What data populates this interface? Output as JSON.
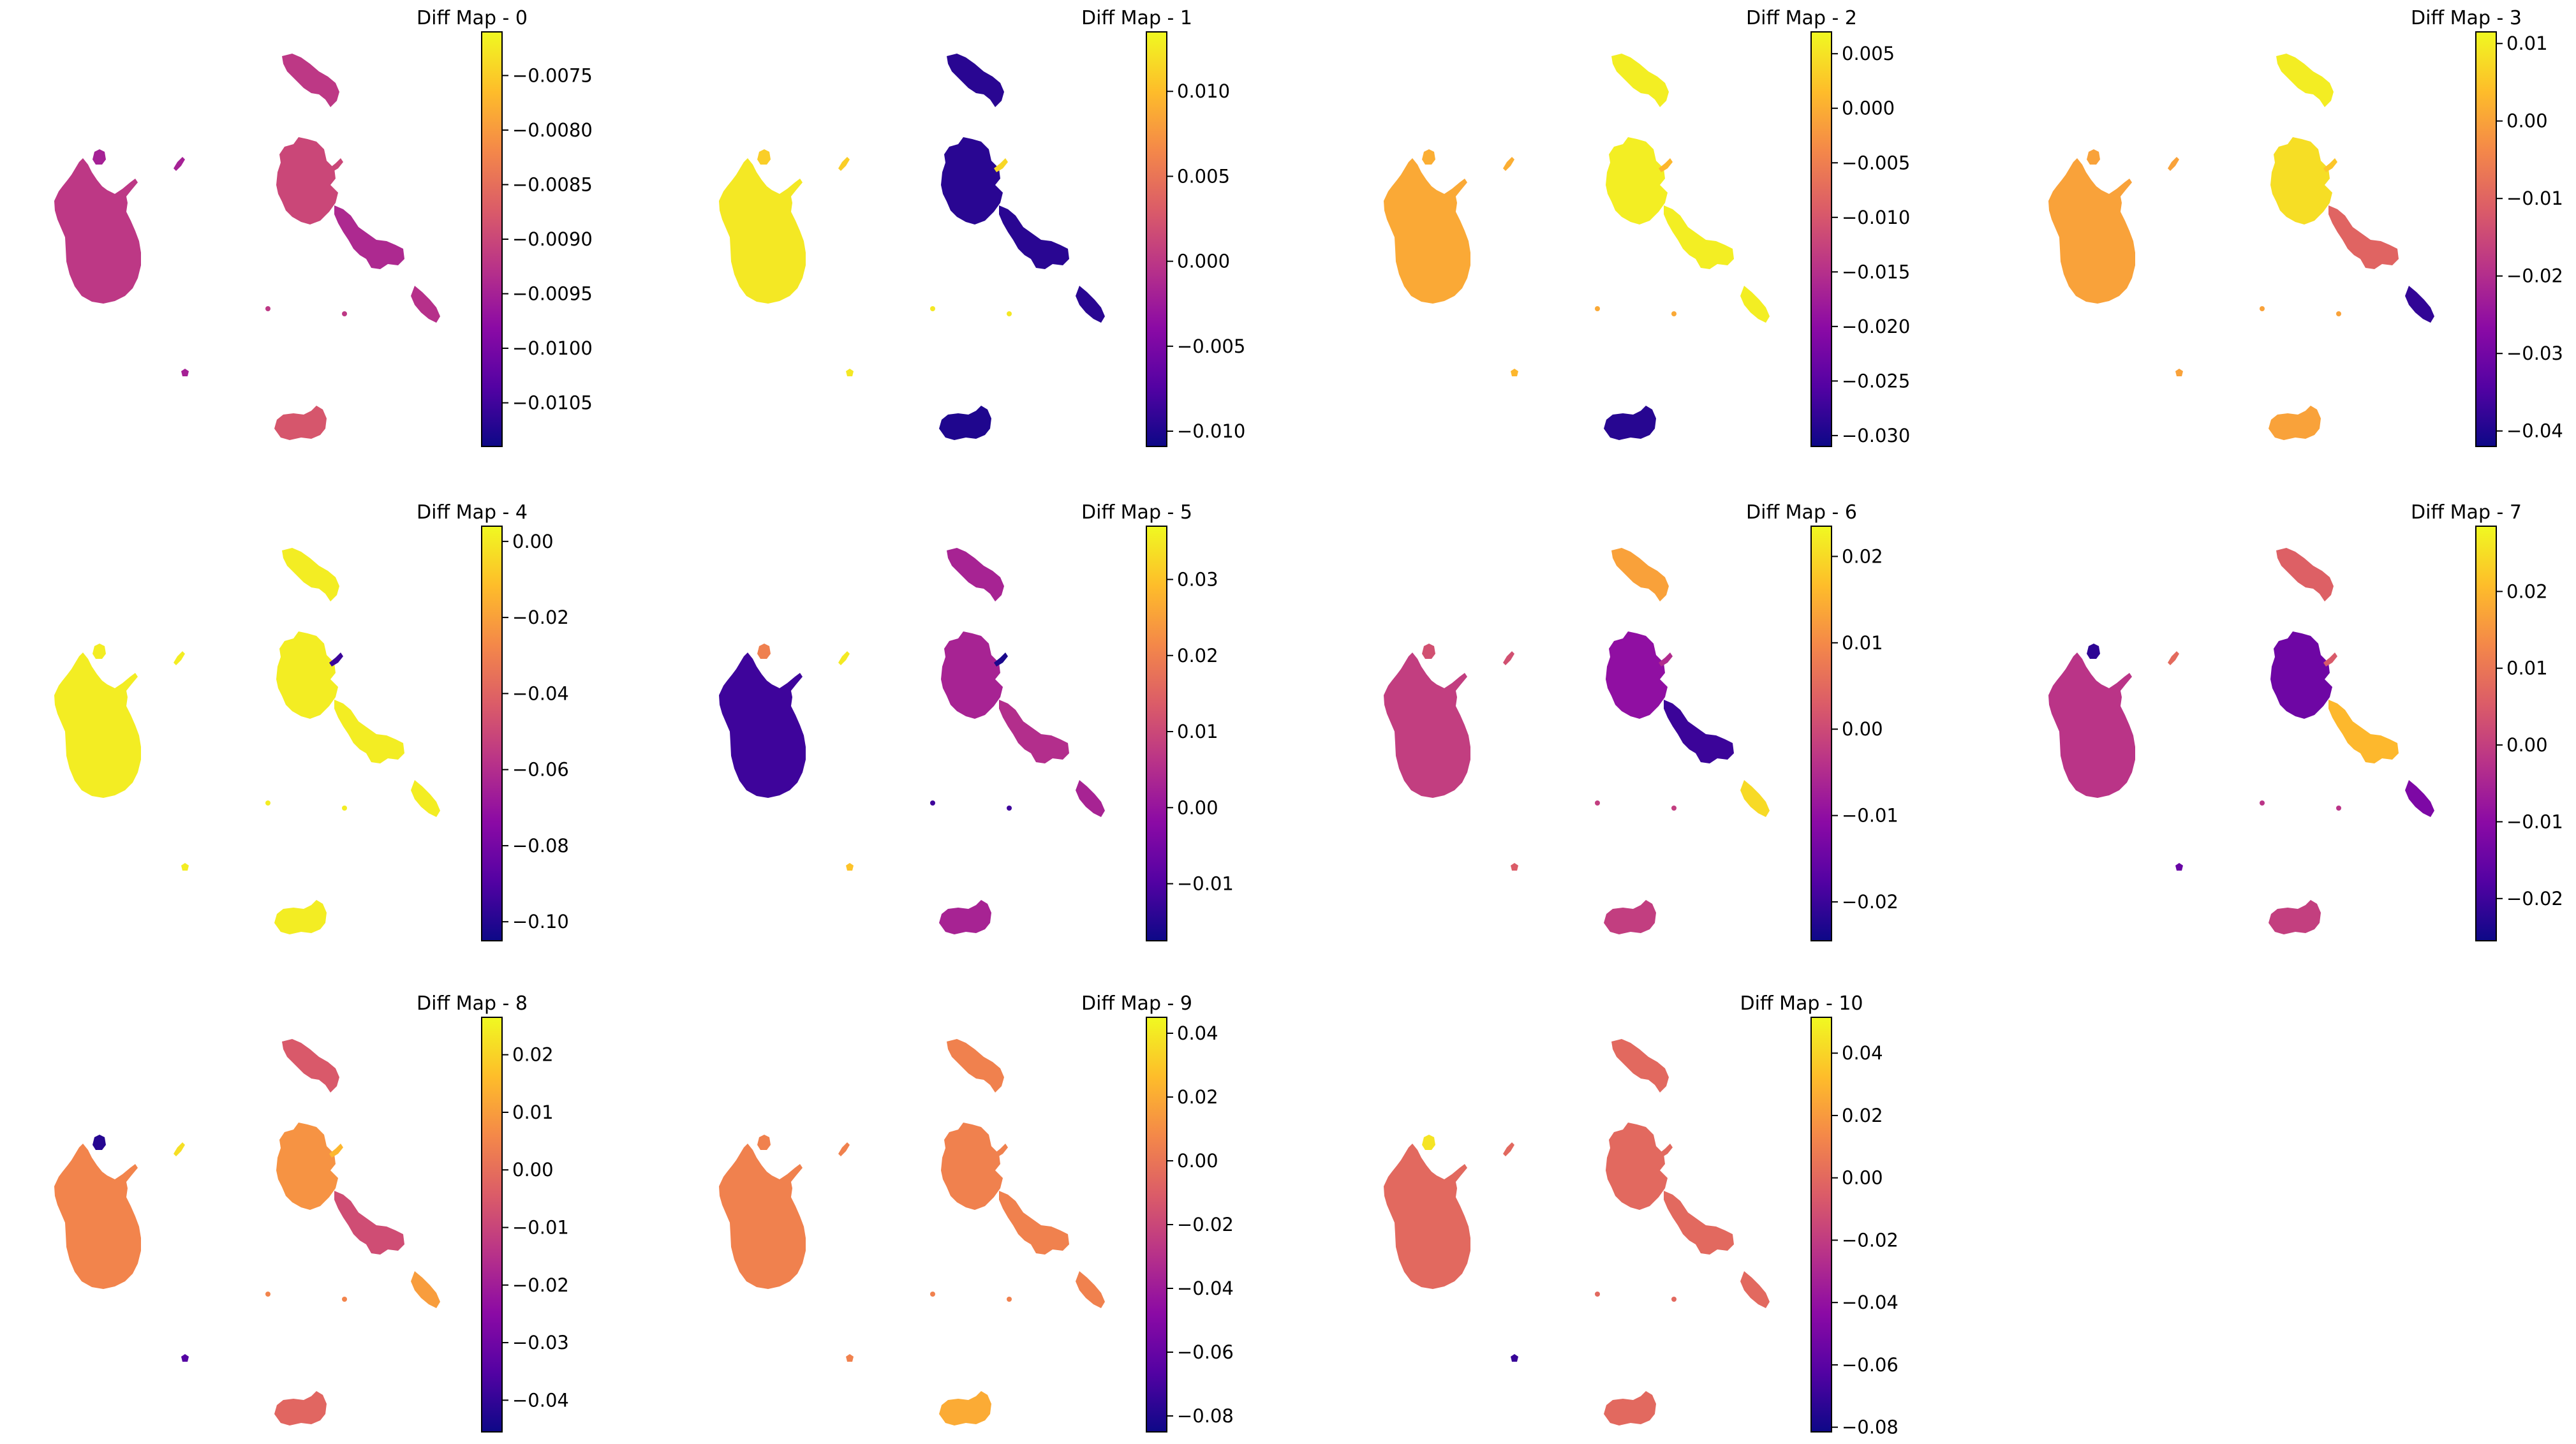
{
  "figure": {
    "colormap": "plasma",
    "colormap_stops": [
      "#0d0887",
      "#5302a3",
      "#8b0aa5",
      "#b83289",
      "#db5c68",
      "#f48849",
      "#febd2a",
      "#f0f921"
    ]
  },
  "chart_data": [
    {
      "type": "scatter",
      "title": "Diff Map - 0",
      "colorbar": {
        "range": [
          -0.0109,
          -0.0071
        ],
        "ticks": [
          -0.0075,
          -0.008,
          -0.0085,
          -0.009,
          -0.0095,
          -0.01,
          -0.0105
        ],
        "tick_labels": [
          "−0.0075",
          "−0.0080",
          "−0.0085",
          "−0.0090",
          "−0.0095",
          "−0.0100",
          "−0.0105"
        ]
      },
      "cluster_values": {
        "main": -0.0092,
        "top": -0.0092,
        "mid": -0.009,
        "chain": -0.0094,
        "tail": -0.0093,
        "bottom": -0.0088,
        "small1": -0.0095,
        "small2": -0.0095,
        "ext": -0.009,
        "tiny": -0.0095
      }
    },
    {
      "type": "scatter",
      "title": "Diff Map - 1",
      "colorbar": {
        "range": [
          -0.0109,
          0.0135
        ],
        "ticks": [
          0.01,
          0.005,
          0.0,
          -0.005,
          -0.01
        ],
        "tick_labels": [
          "0.010",
          "0.005",
          "0.000",
          "−0.005",
          "−0.010"
        ]
      },
      "cluster_values": {
        "main": 0.0125,
        "top": -0.0095,
        "mid": -0.0095,
        "chain": -0.0095,
        "tail": -0.0095,
        "bottom": -0.01,
        "small1": 0.011,
        "small2": 0.011,
        "ext": 0.0115,
        "tiny": 0.0125
      }
    },
    {
      "type": "scatter",
      "title": "Diff Map - 2",
      "colorbar": {
        "range": [
          -0.031,
          0.007
        ],
        "ticks": [
          0.005,
          0.0,
          -0.005,
          -0.01,
          -0.015,
          -0.02,
          -0.025,
          -0.03
        ],
        "tick_labels": [
          "0.005",
          "0.000",
          "−0.005",
          "−0.010",
          "−0.015",
          "−0.020",
          "−0.025",
          "−0.030"
        ]
      },
      "cluster_values": {
        "main": -0.0005,
        "top": 0.006,
        "mid": 0.006,
        "chain": 0.006,
        "tail": 0.006,
        "bottom": -0.029,
        "small1": 0.0,
        "small2": 0.0,
        "ext": 0.001,
        "tiny": 0.001
      }
    },
    {
      "type": "scatter",
      "title": "Diff Map - 3",
      "colorbar": {
        "range": [
          -0.042,
          0.0115
        ],
        "ticks": [
          0.01,
          0.0,
          -0.01,
          -0.02,
          -0.03,
          -0.04
        ],
        "tick_labels": [
          "0.01",
          "0.00",
          "−0.01",
          "−0.02",
          "−0.03",
          "−0.04"
        ]
      },
      "cluster_values": {
        "main": 0.0,
        "top": 0.01,
        "mid": 0.008,
        "chain": -0.01,
        "tail": -0.038,
        "bottom": 0.0,
        "small1": 0.0,
        "small2": 0.0,
        "ext": 0.005,
        "tiny": 0.0
      }
    },
    {
      "type": "scatter",
      "title": "Diff Map - 4",
      "colorbar": {
        "range": [
          -0.105,
          0.004
        ],
        "ticks": [
          0.0,
          -0.02,
          -0.04,
          -0.06,
          -0.08,
          -0.1
        ],
        "tick_labels": [
          "0.00",
          "−0.02",
          "−0.04",
          "−0.06",
          "−0.08",
          "−0.10"
        ]
      },
      "cluster_values": {
        "main": 0.001,
        "top": 0.001,
        "mid": 0.001,
        "chain": 0.001,
        "tail": 0.001,
        "bottom": 0.001,
        "small1": 0.001,
        "small2": 0.001,
        "ext": -0.095,
        "tiny": 0.001
      }
    },
    {
      "type": "scatter",
      "title": "Diff Map - 5",
      "colorbar": {
        "range": [
          -0.0175,
          0.037
        ],
        "ticks": [
          0.03,
          0.02,
          0.01,
          0.0,
          -0.01
        ],
        "tick_labels": [
          "0.03",
          "0.02",
          "0.01",
          "0.00",
          "−0.01"
        ]
      },
      "cluster_values": {
        "main": -0.012,
        "top": 0.003,
        "mid": 0.003,
        "chain": 0.005,
        "tail": 0.003,
        "bottom": 0.003,
        "small1": 0.02,
        "small2": 0.035,
        "ext": -0.016,
        "tiny": 0.03
      }
    },
    {
      "type": "scatter",
      "title": "Diff Map - 6",
      "colorbar": {
        "range": [
          -0.0245,
          0.0235
        ],
        "ticks": [
          0.02,
          0.01,
          0.0,
          -0.01,
          -0.02
        ],
        "tick_labels": [
          "0.02",
          "0.01",
          "0.00",
          "−0.01",
          "−0.02"
        ]
      },
      "cluster_values": {
        "main": -0.002,
        "top": 0.013,
        "mid": -0.01,
        "chain": -0.02,
        "tail": 0.02,
        "bottom": -0.002,
        "small1": 0.001,
        "small2": 0.001,
        "ext": -0.005,
        "tiny": 0.003
      }
    },
    {
      "type": "scatter",
      "title": "Diff Map - 7",
      "colorbar": {
        "range": [
          -0.0255,
          0.0285
        ],
        "ticks": [
          0.02,
          0.01,
          0.0,
          -0.01,
          -0.02
        ],
        "tick_labels": [
          "0.02",
          "0.01",
          "0.00",
          "−0.01",
          "−0.02"
        ]
      },
      "cluster_values": {
        "main": -0.002,
        "top": 0.006,
        "mid": -0.014,
        "chain": 0.02,
        "tail": -0.012,
        "bottom": 0.0,
        "small1": -0.022,
        "small2": 0.008,
        "ext": 0.005,
        "tiny": -0.015
      }
    },
    {
      "type": "scatter",
      "title": "Diff Map - 8",
      "colorbar": {
        "range": [
          -0.0455,
          0.0265
        ],
        "ticks": [
          0.02,
          0.01,
          0.0,
          -0.01,
          -0.02,
          -0.03,
          -0.04
        ],
        "tick_labels": [
          "0.02",
          "0.01",
          "0.00",
          "−0.01",
          "−0.02",
          "−0.03",
          "−0.04"
        ]
      },
      "cluster_values": {
        "main": 0.005,
        "top": -0.005,
        "mid": 0.008,
        "chain": -0.008,
        "tail": 0.01,
        "bottom": -0.002,
        "small1": -0.042,
        "small2": 0.022,
        "ext": 0.015,
        "tiny": -0.035
      }
    },
    {
      "type": "scatter",
      "title": "Diff Map - 9",
      "colorbar": {
        "range": [
          -0.085,
          0.045
        ],
        "ticks": [
          0.04,
          0.02,
          0.0,
          -0.02,
          -0.04,
          -0.06,
          -0.08
        ],
        "tick_labels": [
          "0.04",
          "0.02",
          "0.00",
          "−0.02",
          "−0.04",
          "−0.06",
          "−0.08"
        ]
      },
      "cluster_values": {
        "main": 0.005,
        "top": 0.005,
        "mid": 0.005,
        "chain": 0.005,
        "tail": 0.005,
        "bottom": 0.02,
        "small1": 0.005,
        "small2": 0.005,
        "ext": 0.005,
        "tiny": 0.005
      }
    },
    {
      "type": "scatter",
      "title": "Diff Map - 10",
      "colorbar": {
        "range": [
          -0.0815,
          0.0515
        ],
        "ticks": [
          0.04,
          0.02,
          0.0,
          -0.02,
          -0.04,
          -0.06,
          -0.08
        ],
        "tick_labels": [
          "0.04",
          "0.02",
          "0.00",
          "−0.02",
          "−0.04",
          "−0.06",
          "−0.08"
        ]
      },
      "cluster_values": {
        "main": 0.0,
        "top": 0.0,
        "mid": 0.0,
        "chain": 0.0,
        "tail": 0.0,
        "bottom": 0.0,
        "small1": 0.045,
        "small2": 0.0,
        "ext": 0.0,
        "tiny": -0.07
      }
    }
  ]
}
